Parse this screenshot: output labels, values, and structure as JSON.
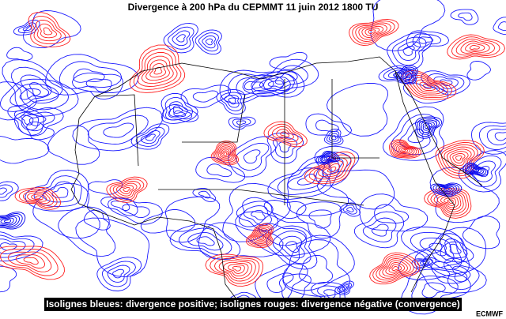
{
  "header": {
    "title": "Divergence à 200 hPa du CEPMMT 11 juin 2012 1800 TU"
  },
  "legend": {
    "caption": "Isolignes bleues: divergence positive; isolignes rouges: divergence négative (convergence)"
  },
  "credit": {
    "source": "ECMWF"
  }
}
